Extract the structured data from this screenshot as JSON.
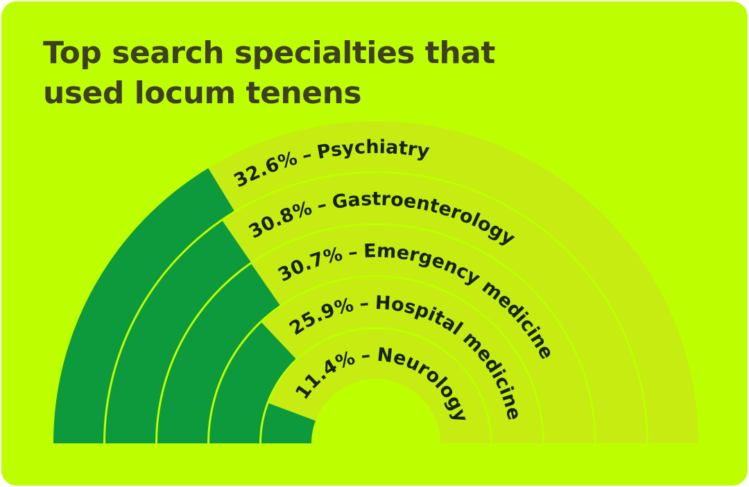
{
  "chart_data": {
    "type": "radial_bar",
    "title": "Top search specialties that used locum tenens",
    "categories": [
      "Psychiatry",
      "Gastroenterology",
      "Emergency medicine",
      "Hospital medicine",
      "Neurology"
    ],
    "values": [
      32.6,
      30.8,
      30.7,
      25.9,
      11.4
    ],
    "value_labels": [
      "32.6%",
      "30.8%",
      "30.7%",
      "25.9%",
      "11.4%"
    ],
    "separator": "–",
    "color": "#0c9a3c",
    "track_color": "#c6ec12",
    "ylim": [
      0,
      100
    ]
  }
}
